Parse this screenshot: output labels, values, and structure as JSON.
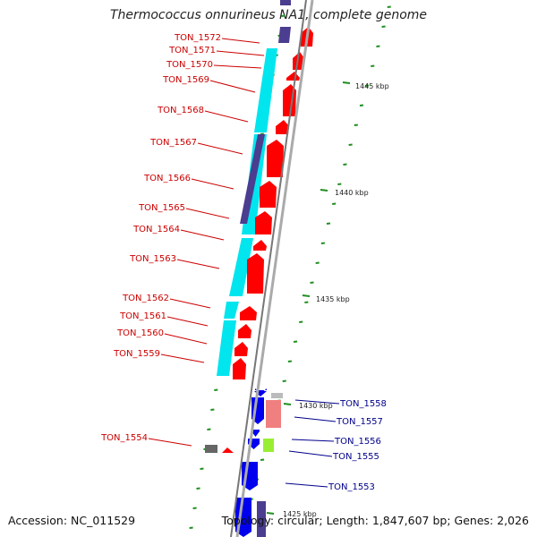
{
  "title": "Thermococcus onnurineus NA1, complete genome",
  "accession": "Accession: NC_011529",
  "summary": "Topology: circular; Length: 1,847,607 bp; Genes: 2,026",
  "colors": {
    "backbone": "#8c8c8c",
    "forward_cds": "#ff0000",
    "reverse_cds": "#0000ee",
    "forward_label": "#cc0000",
    "reverse_label": "#00008b",
    "cyan_block": "#00e5ee",
    "navy_block": "#4b3d8f",
    "tick": "#1f8f1f"
  },
  "scale_labels": [
    "1445 kbp",
    "1440 kbp",
    "1435 kbp",
    "1430 kbp",
    "1425 kbp"
  ],
  "left_labels": [
    "TON_1572",
    "TON_1571",
    "TON_1570",
    "TON_1569",
    "TON_1568",
    "TON_1567",
    "TON_1566",
    "TON_1565",
    "TON_1564",
    "TON_1563",
    "TON_1562",
    "TON_1561",
    "TON_1560",
    "TON_1559",
    "TON_1554"
  ],
  "right_labels": [
    "TON_1558",
    "TON_1557",
    "TON_1556",
    "TON_1555",
    "TON_1553"
  ]
}
